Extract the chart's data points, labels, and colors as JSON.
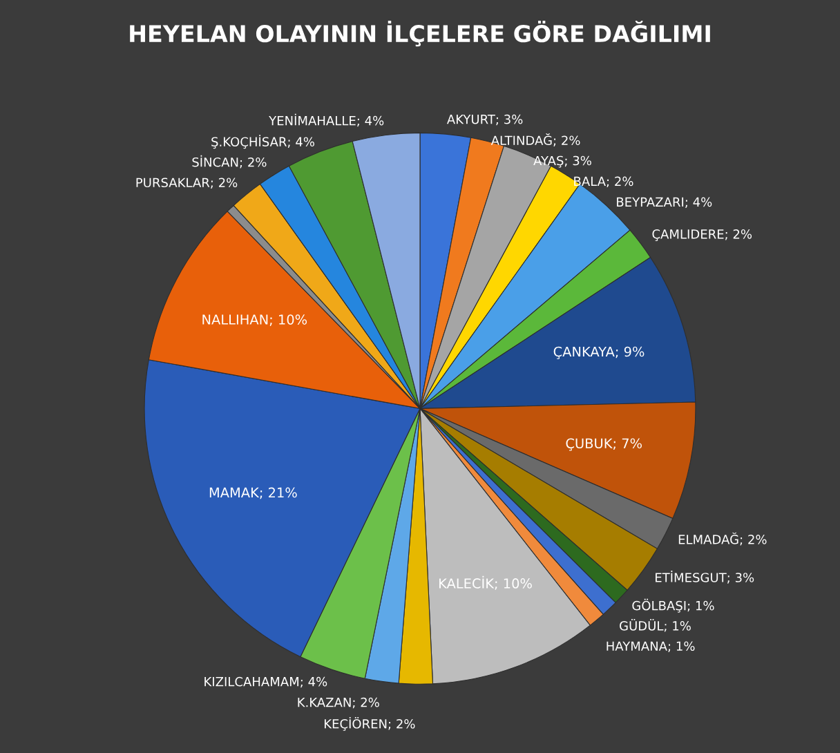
{
  "chart_data": {
    "type": "pie",
    "title": "HEYELAN OLAYININ İLÇELERE GÖRE DAĞILIMI",
    "categories": [
      "AKYURT",
      "ALTINDAĞ",
      "AYAŞ",
      "BALA",
      "BEYPAZARI",
      "ÇAMLIDERE",
      "ÇANKAYA",
      "ÇUBUK",
      "ELMADAĞ",
      "ETİMESGUT",
      "GÖLBAŞI",
      "GÜDÜL",
      "HAYMANA",
      "KALECİK",
      "KEÇİÖREN",
      "K.KAZAN",
      "KIZILCAHAMAM",
      "MAMAK",
      "NALLIHAN",
      null,
      "PURSAKLAR",
      "SİNCAN",
      "Ş.KOÇHİSAR",
      "YENİMAHALLE"
    ],
    "values": [
      3,
      2,
      3,
      2,
      4,
      2,
      9,
      7,
      2,
      3,
      1,
      1,
      1,
      10,
      2,
      2,
      4,
      21,
      10,
      0.5,
      2,
      2,
      4,
      4
    ],
    "value_labels": [
      "3%",
      "2%",
      "3%",
      "2%",
      "4%",
      "2%",
      "9%",
      "7%",
      "2%",
      "3%",
      "1%",
      "1%",
      "1%",
      "10%",
      "2%",
      "2%",
      "4%",
      "21%",
      "10%",
      null,
      "2%",
      "2%",
      "4%",
      "4%"
    ],
    "colors": [
      "#3a74d9",
      "#f07a1e",
      "#a5a5a5",
      "#ffd700",
      "#4a9fe8",
      "#5bb83a",
      "#1f4a8f",
      "#c0530a",
      "#6a6a6a",
      "#a67d00",
      "#2d6a1f",
      "#3d6fcf",
      "#f08a3c",
      "#bdbdbd",
      "#e6b800",
      "#5ea8e8",
      "#6cc04a",
      "#2a5cb8",
      "#e8600a",
      "#8c8c8c",
      "#f0a818",
      "#2586de",
      "#4f9a32",
      "#8aaae0"
    ]
  }
}
